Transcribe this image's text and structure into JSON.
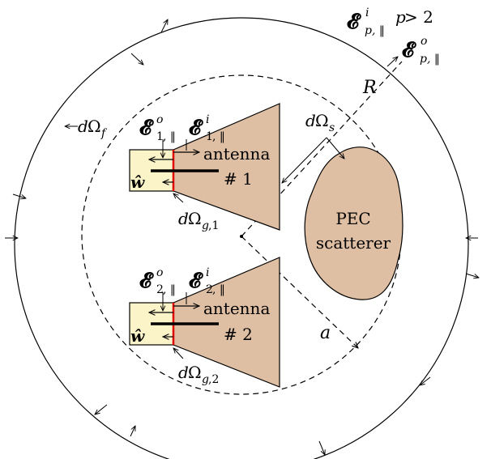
{
  "labels": {
    "R": "R",
    "a": "a",
    "d": "d",
    "omega": "Ω",
    "f": "f",
    "s": "s",
    "g": "g",
    "one": "1",
    "two": "2",
    "p": "p",
    "comma_parallel": ", ‖",
    "p_comma_parallel": "p, ‖",
    "p_gt_2": " > 2",
    "i": "i",
    "o": "o",
    "E": "𝓔",
    "w_hat": "ŵ",
    "antenna": "antenna",
    "antenna1_num": "# 1",
    "antenna2_num": "# 2",
    "pec_line1": "PEC",
    "pec_line2": "scatterer",
    "comma1": ",1",
    "comma2": ",2"
  },
  "colors": {
    "horn_fill": "#dfbfa3",
    "waveguide_fill": "#fcf4c9",
    "aperture_line": "#e00000",
    "stroke": "#000000"
  }
}
